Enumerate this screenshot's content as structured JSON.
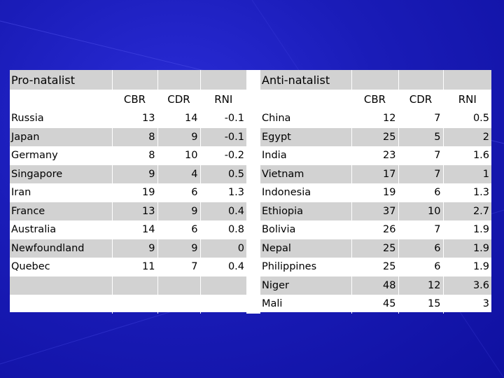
{
  "pro_natalist": {
    "title": "Pro-natalist",
    "headers": [
      "CBR",
      "CDR",
      "RNI"
    ],
    "rows": [
      {
        "country": "Russia",
        "cbr": "13",
        "cdr": "14",
        "rni": "-0.1"
      },
      {
        "country": "Japan",
        "cbr": "8",
        "cdr": "9",
        "rni": "-0.1"
      },
      {
        "country": "Germany",
        "cbr": "8",
        "cdr": "10",
        "rni": "-0.2"
      },
      {
        "country": "Singapore",
        "cbr": "9",
        "cdr": "4",
        "rni": "0.5"
      },
      {
        "country": "Iran",
        "cbr": "19",
        "cdr": "6",
        "rni": "1.3"
      },
      {
        "country": "France",
        "cbr": "13",
        "cdr": "9",
        "rni": "0.4"
      },
      {
        "country": "Australia",
        "cbr": "14",
        "cdr": "6",
        "rni": "0.8"
      },
      {
        "country": "Newfoundland",
        "cbr": "9",
        "cdr": "9",
        "rni": "0"
      },
      {
        "country": "Quebec",
        "cbr": "11",
        "cdr": "7",
        "rni": "0.4"
      }
    ]
  },
  "anti_natalist": {
    "title": "Anti-natalist",
    "headers": [
      "CBR",
      "CDR",
      "RNI"
    ],
    "rows": [
      {
        "country": "China",
        "cbr": "12",
        "cdr": "7",
        "rni": "0.5"
      },
      {
        "country": "Egypt",
        "cbr": "25",
        "cdr": "5",
        "rni": "2"
      },
      {
        "country": "India",
        "cbr": "23",
        "cdr": "7",
        "rni": "1.6"
      },
      {
        "country": "Vietnam",
        "cbr": "17",
        "cdr": "7",
        "rni": "1"
      },
      {
        "country": "Indonesia",
        "cbr": "19",
        "cdr": "6",
        "rni": "1.3"
      },
      {
        "country": "Ethiopia",
        "cbr": "37",
        "cdr": "10",
        "rni": "2.7"
      },
      {
        "country": "Bolivia",
        "cbr": "26",
        "cdr": "7",
        "rni": "1.9"
      },
      {
        "country": "Nepal",
        "cbr": "25",
        "cdr": "6",
        "rni": "1.9"
      },
      {
        "country": "Philippines",
        "cbr": "25",
        "cdr": "6",
        "rni": "1.9"
      },
      {
        "country": "Niger",
        "cbr": "48",
        "cdr": "12",
        "rni": "3.6"
      },
      {
        "country": "Mali",
        "cbr": "45",
        "cdr": "15",
        "rni": "3"
      }
    ]
  },
  "colors": {
    "background": "#1a1cb8",
    "band": "#d2d2d2",
    "table": "#ffffff"
  }
}
